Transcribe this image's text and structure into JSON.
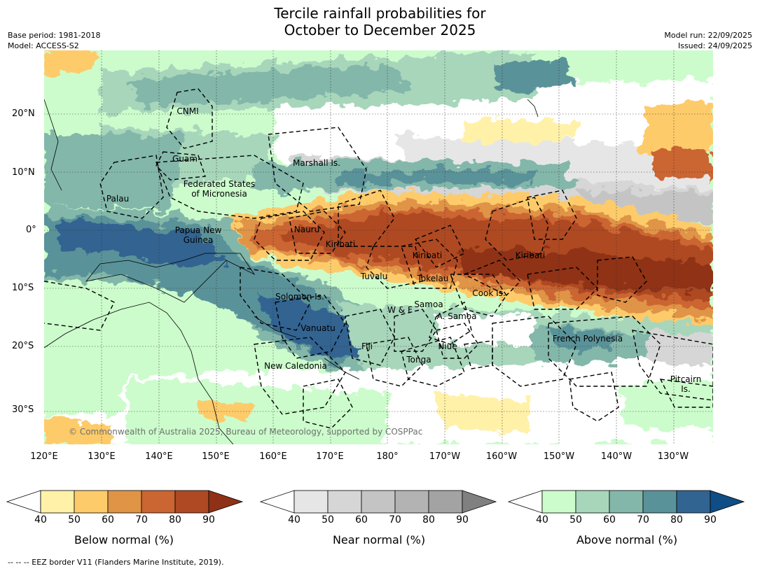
{
  "title_line1": "Tercile rainfall probabilities for",
  "title_line2": "October to December 2025",
  "base_period": "Base period: 1981-2018",
  "model": "Model: ACCESS-S2",
  "model_run": "Model run: 22/09/2025",
  "issued": "Issued: 24/09/2025",
  "lat_labels": [
    "20°N",
    "10°N",
    "0°",
    "10°S",
    "20°S",
    "30°S"
  ],
  "lon_labels": [
    "120°E",
    "130°E",
    "140°E",
    "150°E",
    "160°E",
    "170°E",
    "180°",
    "170°W",
    "160°W",
    "150°W",
    "140°W",
    "130°W"
  ],
  "places": {
    "cnmi": "CNMI",
    "guam": "Guam",
    "marshall": "Marshall Is.",
    "fsm": "Federated States\nof Micronesia",
    "palau": "Palau",
    "png": "Papua New\nGuinea",
    "nauru": "Nauru",
    "kiribati_w": "Kiribati",
    "kiribati_c": "Kiribati",
    "kiribati_e": "Kiribati",
    "tuvalu": "Tuvalu",
    "tokelau": "Tokelau",
    "cook": "Cook Is.",
    "solomon": "Solomon Is.",
    "samoa": "Samoa",
    "wf": "W & F",
    "asamoa": "A. Samoa",
    "vanuatu": "Vanuatu",
    "fiji": "Fiji",
    "niue": "Niue",
    "tonga": "Tonga",
    "newcal": "New Caledonia",
    "frpoly": "French Polynesia",
    "pitcairn": "Pitcairn\nIs."
  },
  "copyright": "© Commonwealth of Australia 2025, Bureau of Meteorology, supported by COSPPac",
  "colorbars": {
    "ticks": [
      "40",
      "50",
      "60",
      "70",
      "80",
      "90"
    ],
    "below": {
      "label": "Below normal (%)",
      "colors": [
        "#fff1a8",
        "#fecb6a",
        "#e09446",
        "#cb6531",
        "#ae4924",
        "#8f3116"
      ]
    },
    "near": {
      "label": "Near normal (%)",
      "colors": [
        "#e6e6e6",
        "#d6d6d6",
        "#c4c4c4",
        "#b3b3b3",
        "#a3a3a3",
        "#808080"
      ]
    },
    "above": {
      "label": "Above normal (%)",
      "colors": [
        "#ccfccc",
        "#a7d6bb",
        "#83b7aa",
        "#5a9299",
        "#326491",
        "#0e4d85"
      ]
    }
  },
  "footnote": "--  --  -- EEZ border V11 (Flanders Marine Institute, 2019)."
}
